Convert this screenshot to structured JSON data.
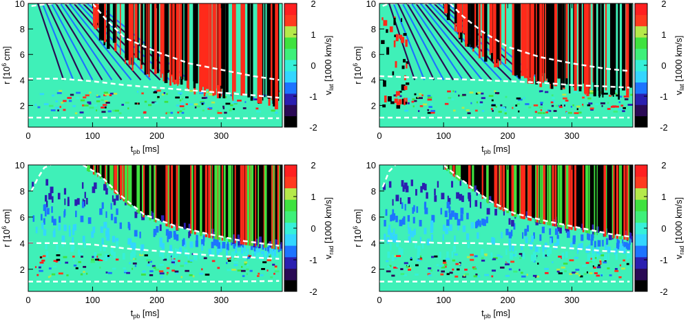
{
  "chart_data": [
    {
      "type": "heatmap",
      "xlabel": "t",
      "xlabel_sub": "pb",
      "xunit": "[ms]",
      "ylabel": "r [10",
      "ylabel_sup": "6",
      "ylabel_unit": " cm]",
      "xlim": [
        0,
        395
      ],
      "ylim": [
        0.3,
        10
      ],
      "xticks": [
        "0",
        "100",
        "200",
        "300"
      ],
      "yticks": [
        "2",
        "4",
        "6",
        "8",
        "10"
      ],
      "colorbar_label": "v",
      "colorbar_sub": "lat",
      "colorbar_unit": " [1000 km/s]",
      "colorbar_range": [
        -2,
        2
      ],
      "colorbar_ticks": [
        "-2",
        "-1",
        "0",
        "1",
        "2"
      ],
      "contours": [
        {
          "x": [
            5,
            20,
            40,
            60,
            80,
            100,
            110
          ],
          "y": [
            9.8,
            9.9,
            10,
            10,
            10,
            10,
            10
          ]
        },
        {
          "x": [
            100,
            120,
            150,
            200,
            250,
            300,
            350,
            390
          ],
          "y": [
            10,
            8.8,
            7.3,
            6.2,
            5.3,
            4.8,
            4.3,
            4.0
          ]
        },
        {
          "x": [
            0,
            50,
            100,
            150,
            200,
            250,
            300,
            350,
            390
          ],
          "y": [
            4.1,
            4.1,
            3.9,
            3.6,
            3.4,
            3.2,
            3.0,
            2.8,
            2.6
          ]
        },
        {
          "x": [
            0,
            100,
            200,
            300,
            390
          ],
          "y": [
            1.05,
            1.05,
            1.05,
            1.0,
            1.0
          ]
        }
      ]
    },
    {
      "type": "heatmap",
      "xlabel": "t",
      "xlabel_sub": "pb",
      "xunit": "[ms]",
      "ylabel": "r [10",
      "ylabel_sup": "6",
      "ylabel_unit": " cm]",
      "xlim": [
        0,
        395
      ],
      "ylim": [
        0.3,
        10
      ],
      "xticks": [
        "0",
        "100",
        "200",
        "300"
      ],
      "yticks": [
        "2",
        "4",
        "6",
        "8",
        "10"
      ],
      "colorbar_label": "v",
      "colorbar_sub": "lat",
      "colorbar_unit": " [1000 km/s]",
      "colorbar_range": [
        -2,
        2
      ],
      "colorbar_ticks": [
        "-2",
        "-1",
        "0",
        "1",
        "2"
      ],
      "contours": [
        {
          "x": [
            5,
            15,
            30,
            50,
            80,
            110
          ],
          "y": [
            9.8,
            10,
            10,
            10,
            10,
            10
          ]
        },
        {
          "x": [
            110,
            130,
            160,
            200,
            250,
            300,
            350,
            390
          ],
          "y": [
            10,
            9.0,
            7.8,
            6.6,
            5.8,
            5.3,
            4.9,
            4.7
          ]
        },
        {
          "x": [
            0,
            50,
            100,
            150,
            200,
            250,
            300,
            350,
            390
          ],
          "y": [
            4.3,
            4.2,
            4.1,
            4.0,
            3.9,
            3.8,
            3.6,
            3.5,
            3.4
          ]
        },
        {
          "x": [
            0,
            100,
            200,
            300,
            390
          ],
          "y": [
            1.05,
            1.05,
            1.05,
            1.05,
            1.05
          ]
        }
      ]
    },
    {
      "type": "heatmap",
      "xlabel": "t",
      "xlabel_sub": "pb",
      "xunit": "[ms]",
      "ylabel": "r [10",
      "ylabel_sup": "6",
      "ylabel_unit": " cm]",
      "xlim": [
        0,
        395
      ],
      "ylim": [
        0.3,
        10
      ],
      "xticks": [
        "0",
        "100",
        "200",
        "300"
      ],
      "yticks": [
        "2",
        "4",
        "6",
        "8",
        "10"
      ],
      "colorbar_label": "v",
      "colorbar_sub": "rad",
      "colorbar_unit": " [1000 km/s]",
      "colorbar_range": [
        -2,
        2
      ],
      "colorbar_ticks": [
        "-2",
        "-1",
        "0",
        "1",
        "2"
      ],
      "contours": [
        {
          "x": [
            5,
            15,
            25,
            35
          ],
          "y": [
            8.0,
            9.0,
            9.8,
            10
          ]
        },
        {
          "x": [
            85,
            110,
            140,
            180,
            230,
            280,
            330,
            390
          ],
          "y": [
            10,
            9.3,
            7.8,
            6.2,
            5.3,
            4.7,
            4.2,
            3.8
          ]
        },
        {
          "x": [
            0,
            50,
            100,
            150,
            200,
            250,
            300,
            350,
            390
          ],
          "y": [
            4.0,
            4.0,
            3.9,
            3.6,
            3.4,
            3.2,
            3.0,
            2.9,
            2.8
          ]
        },
        {
          "x": [
            0,
            100,
            200,
            300,
            390
          ],
          "y": [
            1.05,
            1.05,
            1.05,
            1.05,
            1.1
          ]
        }
      ]
    },
    {
      "type": "heatmap",
      "xlabel": "t",
      "xlabel_sub": "pb",
      "xunit": "[ms]",
      "ylabel": "r [10",
      "ylabel_sup": "6",
      "ylabel_unit": " cm]",
      "xlim": [
        0,
        395
      ],
      "ylim": [
        0.3,
        10
      ],
      "xticks": [
        "0",
        "100",
        "200",
        "300"
      ],
      "yticks": [
        "2",
        "4",
        "6",
        "8",
        "10"
      ],
      "colorbar_label": "v",
      "colorbar_sub": "rad",
      "colorbar_unit": " [1000 km/s]",
      "colorbar_range": [
        -2,
        2
      ],
      "colorbar_ticks": [
        "-2",
        "-1",
        "0",
        "1",
        "2"
      ],
      "contours": [
        {
          "x": [
            5,
            15,
            25
          ],
          "y": [
            8.3,
            9.5,
            10
          ]
        },
        {
          "x": [
            100,
            130,
            170,
            210,
            260,
            310,
            360,
            390
          ],
          "y": [
            10,
            8.8,
            7.3,
            6.3,
            5.7,
            5.2,
            4.7,
            4.5
          ]
        },
        {
          "x": [
            0,
            50,
            100,
            150,
            200,
            250,
            300,
            350,
            390
          ],
          "y": [
            4.2,
            4.1,
            4.0,
            4.0,
            3.9,
            3.8,
            3.6,
            3.4,
            3.3
          ]
        },
        {
          "x": [
            0,
            100,
            200,
            300,
            390
          ],
          "y": [
            1.05,
            1.05,
            1.05,
            1.05,
            1.05
          ]
        }
      ]
    }
  ],
  "colors": {
    "colormap": [
      "#000000",
      "#2a0a55",
      "#2b1fb0",
      "#1d74ff",
      "#33d6ff",
      "#36f0d8",
      "#3ef07a",
      "#3fe23f",
      "#b5e94a",
      "#ff3a1e",
      "#ff2020"
    ],
    "background_field": "#3ff0b8",
    "contour": "#ffffff"
  }
}
